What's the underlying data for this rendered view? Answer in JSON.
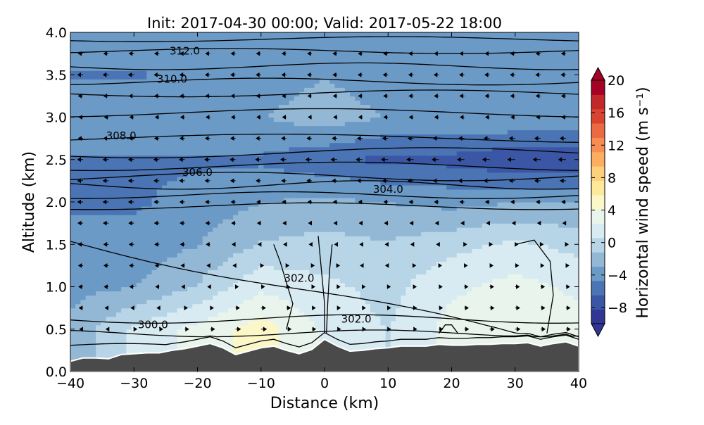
{
  "chart_data": {
    "type": "heatmap",
    "title": "Init: 2017-04-30 00:00; Valid: 2017-05-22 18:00",
    "xlabel": "Distance (km)",
    "ylabel": "Altitude (km)",
    "xlim": [
      -40,
      40
    ],
    "ylim": [
      0,
      4
    ],
    "x_ticks": [
      -40,
      -30,
      -20,
      -10,
      0,
      10,
      20,
      30,
      40
    ],
    "x_tick_labels": [
      "−40",
      "−30",
      "−20",
      "−10",
      "0",
      "10",
      "20",
      "30",
      "40"
    ],
    "y_ticks": [
      0.0,
      0.5,
      1.0,
      1.5,
      2.0,
      2.5,
      3.0,
      3.5,
      4.0
    ],
    "y_tick_labels": [
      "0.0",
      "0.5",
      "1.0",
      "1.5",
      "2.0",
      "2.5",
      "3.0",
      "3.5",
      "4.0"
    ],
    "colorbar": {
      "label": "Horizontal wind speed (m s⁻¹)",
      "range": [
        -10,
        20
      ],
      "extend": "both",
      "ticks": [
        -8,
        -4,
        0,
        4,
        8,
        12,
        16,
        20
      ],
      "tick_labels": [
        "−8",
        "−4",
        "0",
        "4",
        "8",
        "12",
        "16",
        "20"
      ],
      "colors": [
        "#313695",
        "#3b56a5",
        "#4a74b4",
        "#6c9ac6",
        "#92b8d6",
        "#b7d5e6",
        "#d9ebf2",
        "#e8f4ec",
        "#fbf7c9",
        "#fee99b",
        "#fdd07c",
        "#fcad60",
        "#f88d52",
        "#ec6a41",
        "#d94430",
        "#c1272b",
        "#a50026"
      ]
    },
    "wind_speed_field": {
      "x_km": [
        -40,
        -30,
        -20,
        -10,
        0,
        10,
        20,
        30,
        40
      ],
      "z_km": [
        0.5,
        1.0,
        1.5,
        2.0,
        2.5,
        3.0,
        3.5,
        4.0
      ],
      "values_m_s": [
        [
          -2.5,
          1,
          3,
          5,
          2,
          0.5,
          3,
          4,
          3
        ],
        [
          -3.5,
          -3,
          -1,
          2,
          1,
          0,
          2,
          3,
          2
        ],
        [
          -4,
          -4,
          -3,
          -1,
          -0.5,
          -1,
          0,
          1,
          0
        ],
        [
          -5,
          -5,
          -4,
          -3,
          -2.5,
          -3,
          -3.5,
          -3,
          -3
        ],
        [
          -5,
          -5,
          -5,
          -5,
          -6,
          -7,
          -7,
          -8,
          -8
        ],
        [
          -3,
          -3,
          -3,
          -3,
          -2,
          -3,
          -3,
          -3,
          -3
        ],
        [
          -5,
          -5,
          -4,
          -4,
          -3,
          -4,
          -4,
          -4,
          -4
        ],
        [
          -3,
          -3,
          -3,
          -3,
          -3,
          -3,
          -3,
          -3,
          -3
        ]
      ]
    },
    "theta_contours_K": {
      "interval": 1,
      "labeled": [
        {
          "label": "300.0",
          "x": -27,
          "z": 0.55
        },
        {
          "label": "302.0",
          "x": -4,
          "z": 1.1
        },
        {
          "label": "302.0",
          "x": 5,
          "z": 0.62
        },
        {
          "label": "304.0",
          "x": 10,
          "z": 2.15
        },
        {
          "label": "306.0",
          "x": -20,
          "z": 2.35
        },
        {
          "label": "308.0",
          "x": -32,
          "z": 2.78
        },
        {
          "label": "310.0",
          "x": -24,
          "z": 3.45
        },
        {
          "label": "312.0",
          "x": -22,
          "z": 3.78
        }
      ]
    },
    "terrain_km": {
      "x": [
        -40,
        -38,
        -36,
        -34,
        -32,
        -30,
        -28,
        -26,
        -24,
        -22,
        -20,
        -18,
        -16,
        -14,
        -12,
        -10,
        -8,
        -6,
        -4,
        -2,
        0,
        2,
        4,
        6,
        8,
        10,
        12,
        14,
        16,
        18,
        20,
        22,
        24,
        26,
        28,
        30,
        32,
        34,
        36,
        38,
        40
      ],
      "z": [
        0.12,
        0.16,
        0.16,
        0.15,
        0.2,
        0.21,
        0.22,
        0.22,
        0.25,
        0.27,
        0.3,
        0.33,
        0.28,
        0.2,
        0.24,
        0.28,
        0.3,
        0.25,
        0.21,
        0.26,
        0.38,
        0.3,
        0.24,
        0.25,
        0.27,
        0.28,
        0.3,
        0.3,
        0.3,
        0.32,
        0.31,
        0.31,
        0.32,
        0.32,
        0.33,
        0.33,
        0.34,
        0.3,
        0.33,
        0.35,
        0.3
      ]
    }
  }
}
